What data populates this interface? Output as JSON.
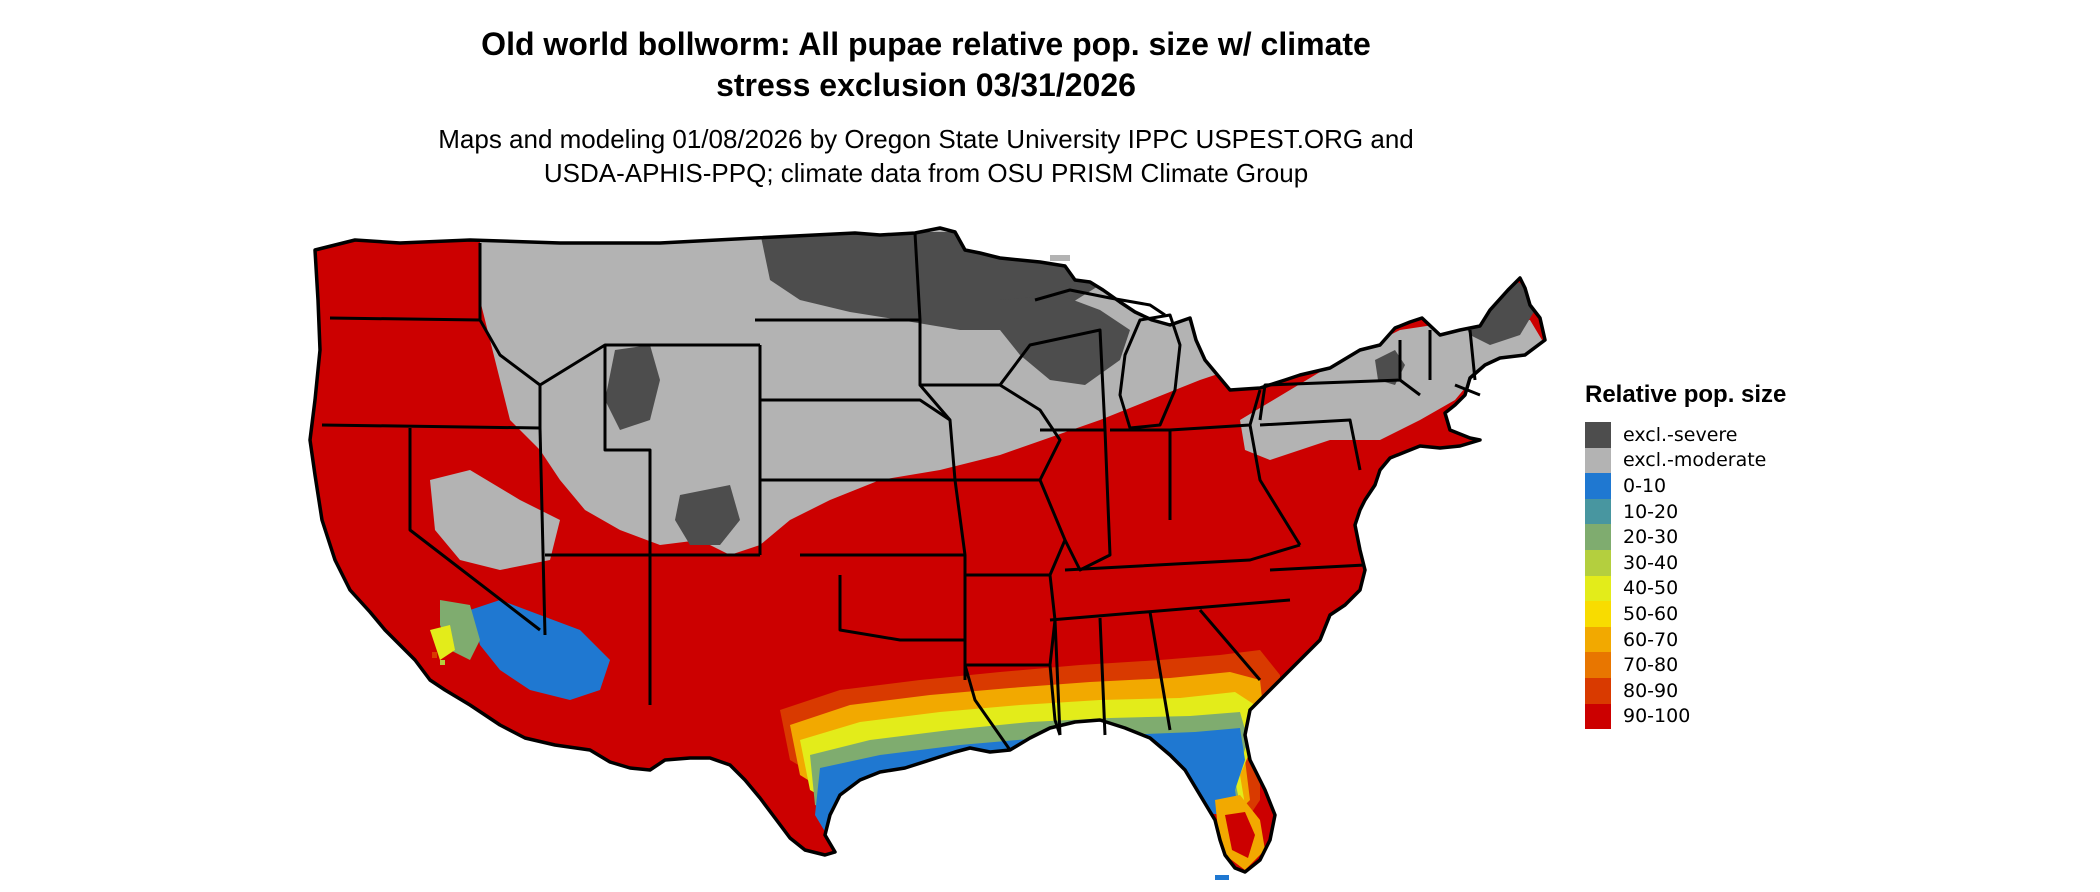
{
  "title": {
    "line1": "Old world bollworm: All pupae relative pop. size w/ climate",
    "line2": "stress exclusion 03/31/2026"
  },
  "subtitle": {
    "line1": "Maps and modeling 01/08/2026 by Oregon State University IPPC USPEST.ORG and",
    "line2": "USDA-APHIS-PPQ; climate data from OSU PRISM Climate Group"
  },
  "map": {
    "region": "Conterminous United States",
    "colors": {
      "state_border": "#000000",
      "dominant_fill": "#cc0000"
    }
  },
  "legend": {
    "title": "Relative pop. size",
    "items": [
      {
        "label": "excl.-severe",
        "color": "#4d4d4d"
      },
      {
        "label": "excl.-moderate",
        "color": "#b3b3b3"
      },
      {
        "label": "0-10",
        "color": "#1f78d1"
      },
      {
        "label": "10-20",
        "color": "#4896a0"
      },
      {
        "label": "20-30",
        "color": "#7fac6f"
      },
      {
        "label": "30-40",
        "color": "#b4cf3e"
      },
      {
        "label": "40-50",
        "color": "#e3ec1a"
      },
      {
        "label": "50-60",
        "color": "#f8dc00"
      },
      {
        "label": "60-70",
        "color": "#f2a900"
      },
      {
        "label": "70-80",
        "color": "#e87600"
      },
      {
        "label": "80-90",
        "color": "#d93a00"
      },
      {
        "label": "90-100",
        "color": "#cc0000"
      }
    ]
  }
}
